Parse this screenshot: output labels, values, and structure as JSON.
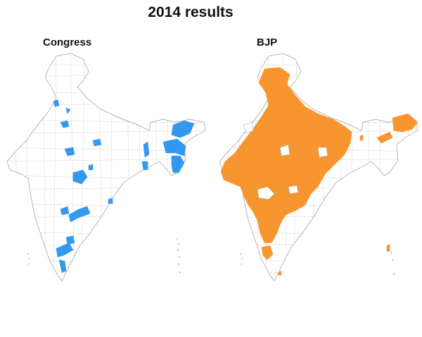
{
  "title": "2014 results",
  "panels": [
    {
      "label": "Congress",
      "party_color": "#3399ee"
    },
    {
      "label": "BJP",
      "party_color": "#f7962f"
    }
  ]
}
